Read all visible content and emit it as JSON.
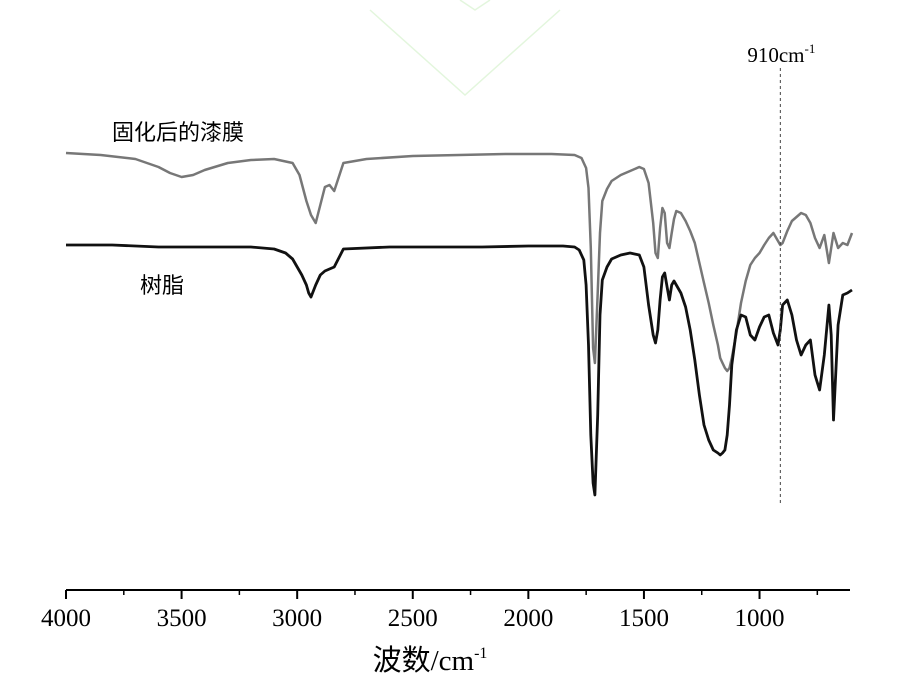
{
  "chart_data": {
    "type": "line",
    "title": "",
    "xlabel": "波数/cm",
    "xlabel_sup": "-1",
    "ylabel": "",
    "xlim": [
      4000,
      600
    ],
    "x_reversed": true,
    "y_axis_shown": false,
    "grid": false,
    "x_ticks": [
      4000,
      3500,
      3000,
      2500,
      2000,
      1500,
      1000
    ],
    "x_tick_labels": [
      "4000",
      "3500",
      "3000",
      "2500",
      "2000",
      "1500",
      "1000"
    ],
    "y_units": "relative transmittance, 0 = line top level (baseline), negative = absorption dip; traces are vertically offset",
    "series": [
      {
        "name": "固化后的漆膜",
        "color": "#777777",
        "offset": 92,
        "x": [
          4000,
          3850,
          3700,
          3600,
          3550,
          3500,
          3450,
          3400,
          3300,
          3200,
          3100,
          3020,
          2990,
          2960,
          2940,
          2920,
          2900,
          2880,
          2860,
          2840,
          2800,
          2700,
          2500,
          2300,
          2100,
          1900,
          1800,
          1770,
          1750,
          1740,
          1730,
          1720,
          1712,
          1700,
          1690,
          1680,
          1660,
          1640,
          1600,
          1560,
          1520,
          1500,
          1480,
          1460,
          1450,
          1440,
          1430,
          1420,
          1410,
          1400,
          1390,
          1380,
          1370,
          1360,
          1340,
          1320,
          1300,
          1280,
          1260,
          1240,
          1220,
          1200,
          1180,
          1170,
          1160,
          1150,
          1140,
          1130,
          1120,
          1100,
          1080,
          1060,
          1040,
          1020,
          1000,
          980,
          960,
          940,
          920,
          910,
          900,
          880,
          860,
          840,
          820,
          800,
          780,
          760,
          740,
          720,
          700,
          680,
          660,
          640,
          620,
          600
        ],
        "values": [
          0,
          -2,
          -6,
          -14,
          -20,
          -24,
          -22,
          -17,
          -10,
          -7,
          -6,
          -10,
          -22,
          -48,
          -62,
          -70,
          -52,
          -34,
          -32,
          -38,
          -10,
          -6,
          -3,
          -2,
          -1,
          -1,
          -2,
          -5,
          -15,
          -35,
          -95,
          -195,
          -210,
          -140,
          -80,
          -48,
          -36,
          -28,
          -22,
          -18,
          -14,
          -16,
          -30,
          -70,
          -100,
          -105,
          -75,
          -55,
          -60,
          -90,
          -95,
          -80,
          -66,
          -58,
          -60,
          -68,
          -78,
          -90,
          -110,
          -130,
          -150,
          -172,
          -192,
          -205,
          -210,
          -215,
          -218,
          -215,
          -205,
          -180,
          -150,
          -128,
          -112,
          -105,
          -100,
          -92,
          -85,
          -80,
          -88,
          -92,
          -90,
          -78,
          -68,
          -64,
          -60,
          -62,
          -70,
          -85,
          -95,
          -82,
          -110,
          -80,
          -95,
          -90,
          -92,
          -80
        ],
        "label_text": "固化后的漆膜"
      },
      {
        "name": "树脂",
        "color": "#111111",
        "offset": 0,
        "x": [
          4000,
          3800,
          3600,
          3400,
          3200,
          3100,
          3050,
          3020,
          3000,
          2980,
          2960,
          2950,
          2940,
          2920,
          2900,
          2880,
          2860,
          2840,
          2800,
          2600,
          2400,
          2200,
          2000,
          1850,
          1800,
          1780,
          1760,
          1750,
          1740,
          1730,
          1720,
          1712,
          1700,
          1690,
          1680,
          1660,
          1640,
          1600,
          1560,
          1520,
          1500,
          1480,
          1460,
          1450,
          1440,
          1430,
          1420,
          1410,
          1400,
          1390,
          1380,
          1370,
          1360,
          1340,
          1320,
          1300,
          1280,
          1260,
          1240,
          1220,
          1200,
          1180,
          1170,
          1160,
          1150,
          1140,
          1130,
          1120,
          1100,
          1080,
          1060,
          1040,
          1020,
          1000,
          980,
          960,
          940,
          920,
          910,
          900,
          880,
          860,
          840,
          820,
          800,
          780,
          760,
          740,
          720,
          700,
          690,
          680,
          660,
          640,
          620,
          600
        ],
        "values": [
          0,
          0,
          -2,
          -2,
          -2,
          -4,
          -8,
          -14,
          -22,
          -30,
          -40,
          -48,
          -52,
          -40,
          -30,
          -26,
          -24,
          -22,
          -4,
          -2,
          -2,
          -2,
          -1,
          -1,
          -2,
          -5,
          -15,
          -40,
          -100,
          -190,
          -238,
          -250,
          -170,
          -70,
          -35,
          -22,
          -14,
          -10,
          -8,
          -10,
          -22,
          -60,
          -90,
          -98,
          -85,
          -55,
          -32,
          -28,
          -42,
          -55,
          -40,
          -36,
          -40,
          -48,
          -62,
          -85,
          -115,
          -150,
          -180,
          -195,
          -205,
          -208,
          -210,
          -208,
          -205,
          -190,
          -160,
          -120,
          -85,
          -70,
          -72,
          -90,
          -95,
          -82,
          -72,
          -70,
          -88,
          -100,
          -85,
          -60,
          -55,
          -70,
          -95,
          -110,
          -100,
          -95,
          -130,
          -145,
          -110,
          -60,
          -90,
          -175,
          -80,
          -50,
          -48,
          -45
        ],
        "label_text": "树脂"
      }
    ],
    "annotation": {
      "x": 910,
      "text": "910cm",
      "sup": "-1",
      "style": "dashed vertical line"
    }
  }
}
